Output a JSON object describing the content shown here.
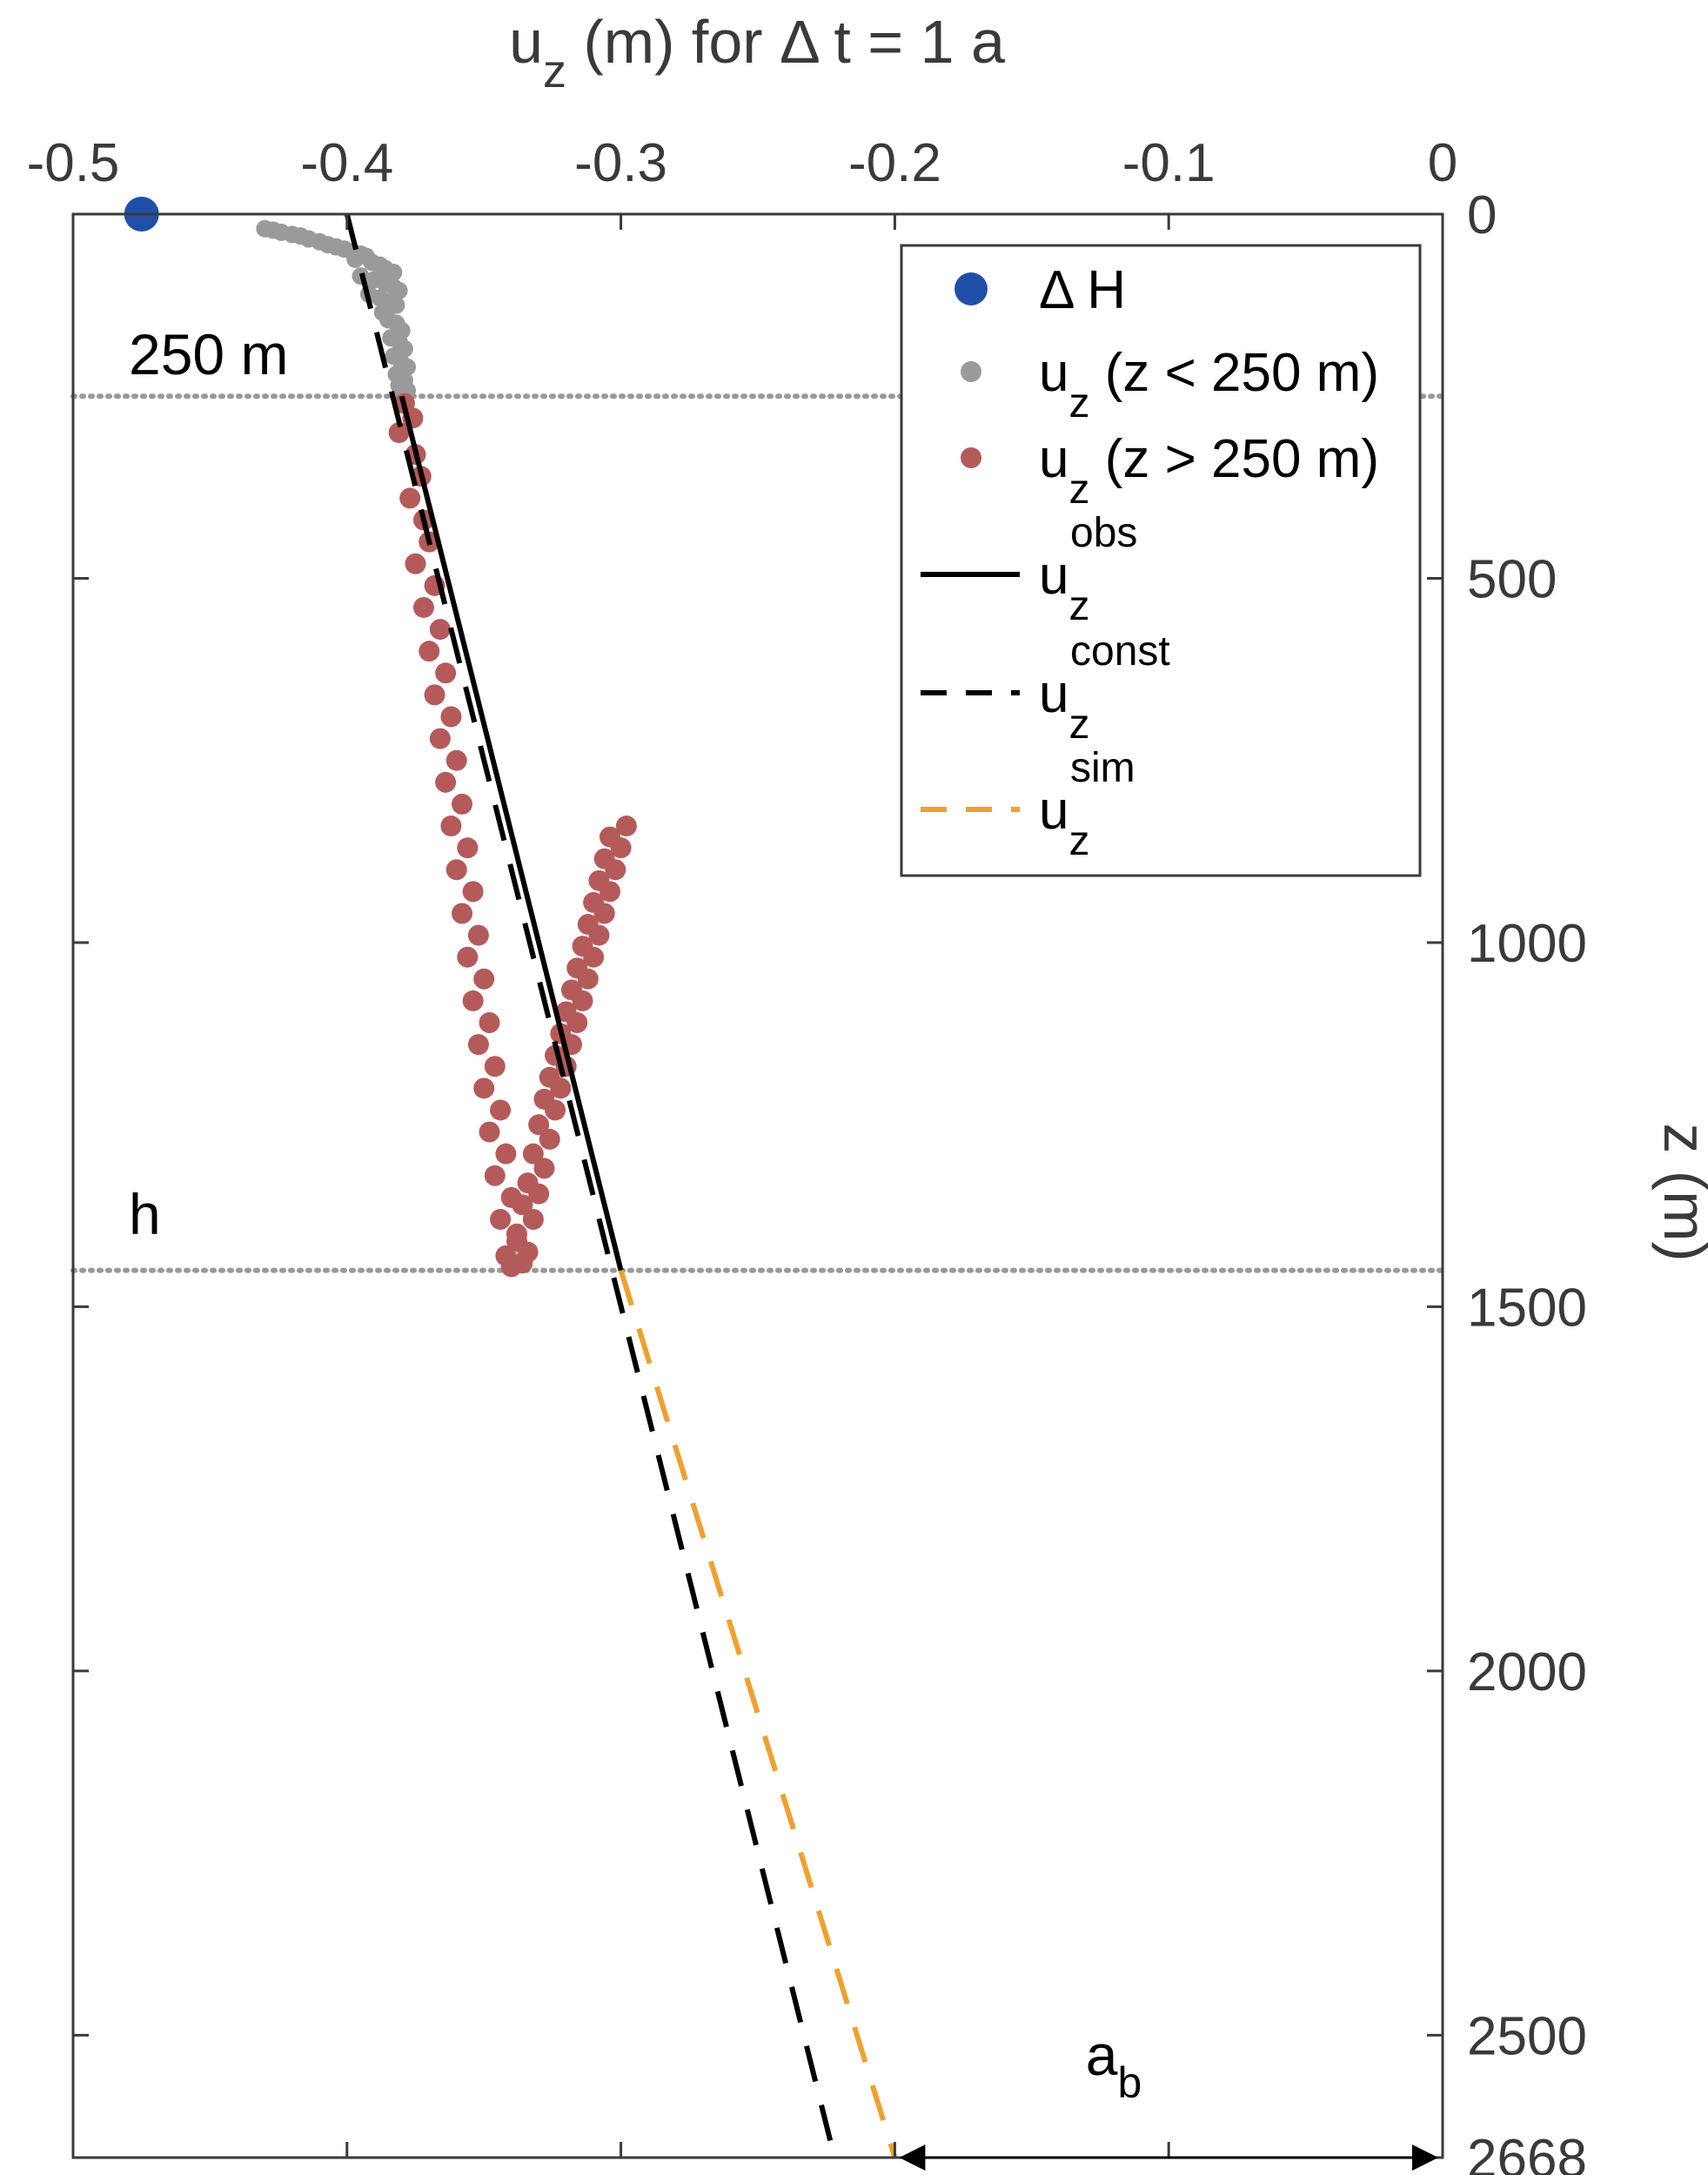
{
  "chart_data": {
    "type": "scatter",
    "title": "",
    "xlabel": {
      "main": "u",
      "sub": "z",
      "rest": " (m) for Δ t = 1 a"
    },
    "ylabel": "z (m)",
    "xlim": [
      -0.5,
      0
    ],
    "ylim": [
      0,
      2668
    ],
    "y_reversed": true,
    "x_axis_position": "top",
    "y_axis_position": "right",
    "xticks": [
      -0.5,
      -0.4,
      -0.3,
      -0.2,
      -0.1,
      0
    ],
    "xtick_labels": [
      "-0.5",
      "-0.4",
      "-0.3",
      "-0.2",
      "-0.1",
      "0"
    ],
    "yticks": [
      0,
      500,
      1000,
      1500,
      2000,
      2500,
      2668
    ],
    "ytick_labels": [
      "0",
      "500",
      "1000",
      "1500",
      "2000",
      "2500",
      "2668"
    ],
    "colors": {
      "delta_h": "#1f4fa8",
      "uz_shallow": "#9a9a9a",
      "uz_deep": "#b55a5a",
      "obs": "#000000",
      "const": "#000000",
      "sim": "#f0a030",
      "ref_lines": "#999999",
      "axes": "#3a3a3a"
    },
    "reference_lines": [
      {
        "y": 250,
        "label": "250 m"
      },
      {
        "y": 1450,
        "label": "h"
      }
    ],
    "annotation": {
      "main": "a",
      "sub": "b",
      "x_from": -0.2,
      "x_to": 0,
      "y": 2668
    },
    "legend": {
      "placement": "top-right",
      "entries": [
        {
          "key": "delta_h",
          "main": "Δ H",
          "sub": "",
          "sup": "",
          "rest": ""
        },
        {
          "key": "uz_shallow",
          "main": "u",
          "sub": "z",
          "sup": "",
          "rest": " (z < 250 m)"
        },
        {
          "key": "uz_deep",
          "main": "u",
          "sub": "z",
          "sup": "",
          "rest": " (z > 250 m)"
        },
        {
          "key": "obs",
          "main": "u",
          "sub": "z",
          "sup": "obs",
          "rest": ""
        },
        {
          "key": "const",
          "main": "u",
          "sub": "z",
          "sup": "const",
          "rest": ""
        },
        {
          "key": "sim",
          "main": "u",
          "sub": "z",
          "sup": "sim",
          "rest": ""
        }
      ]
    },
    "series": [
      {
        "key": "delta_h",
        "kind": "marker",
        "x": [
          -0.475
        ],
        "y": [
          0
        ]
      },
      {
        "key": "uz_shallow",
        "kind": "points",
        "x": [
          -0.43,
          -0.427,
          -0.424,
          -0.42,
          -0.417,
          -0.414,
          -0.41,
          -0.407,
          -0.404,
          -0.401,
          -0.398,
          -0.395,
          -0.393,
          -0.397,
          -0.391,
          -0.388,
          -0.386,
          -0.383,
          -0.395,
          -0.39,
          -0.386,
          -0.383,
          -0.381,
          -0.392,
          -0.388,
          -0.384,
          -0.382,
          -0.387,
          -0.385,
          -0.382,
          -0.38,
          -0.384,
          -0.381,
          -0.379,
          -0.383,
          -0.38,
          -0.378,
          -0.382,
          -0.379,
          -0.381,
          -0.378,
          -0.38
        ],
        "y": [
          20,
          22,
          25,
          28,
          30,
          34,
          38,
          42,
          45,
          48,
          52,
          55,
          58,
          62,
          66,
          70,
          75,
          80,
          85,
          90,
          95,
          100,
          105,
          110,
          115,
          120,
          125,
          135,
          145,
          150,
          160,
          170,
          175,
          185,
          195,
          205,
          210,
          220,
          228,
          235,
          242,
          248
        ]
      },
      {
        "key": "uz_deep",
        "kind": "points",
        "x": [
          -0.379,
          -0.376,
          -0.381,
          -0.375,
          -0.373,
          -0.377,
          -0.372,
          -0.37,
          -0.375,
          -0.368,
          -0.372,
          -0.366,
          -0.37,
          -0.364,
          -0.368,
          -0.362,
          -0.366,
          -0.36,
          -0.364,
          -0.358,
          -0.362,
          -0.356,
          -0.36,
          -0.354,
          -0.358,
          -0.352,
          -0.356,
          -0.35,
          -0.354,
          -0.348,
          -0.352,
          -0.346,
          -0.35,
          -0.344,
          -0.348,
          -0.342,
          -0.346,
          -0.34,
          -0.344,
          -0.338,
          -0.342,
          -0.336,
          -0.34,
          -0.334,
          -0.338,
          -0.332,
          -0.336,
          -0.33,
          -0.334,
          -0.328,
          -0.332,
          -0.326,
          -0.33,
          -0.324,
          -0.328,
          -0.322,
          -0.326,
          -0.32,
          -0.324,
          -0.318,
          -0.322,
          -0.316,
          -0.32,
          -0.314,
          -0.318,
          -0.312,
          -0.316,
          -0.31,
          -0.314,
          -0.308,
          -0.312,
          -0.306,
          -0.31,
          -0.304,
          -0.308,
          -0.302,
          -0.306,
          -0.3,
          -0.304,
          -0.298
        ],
        "y": [
          260,
          280,
          300,
          330,
          360,
          390,
          420,
          450,
          480,
          510,
          540,
          570,
          600,
          630,
          660,
          690,
          720,
          750,
          780,
          810,
          840,
          870,
          900,
          930,
          960,
          990,
          1020,
          1050,
          1080,
          1110,
          1140,
          1170,
          1200,
          1230,
          1260,
          1290,
          1320,
          1350,
          1380,
          1410,
          1430,
          1440,
          1445,
          1425,
          1400,
          1380,
          1360,
          1345,
          1330,
          1310,
          1290,
          1270,
          1250,
          1230,
          1215,
          1200,
          1185,
          1170,
          1155,
          1140,
          1125,
          1110,
          1095,
          1080,
          1065,
          1050,
          1035,
          1020,
          1005,
          990,
          975,
          960,
          945,
          930,
          915,
          900,
          885,
          870,
          855,
          840
        ]
      },
      {
        "key": "obs",
        "kind": "line",
        "x": [
          -0.38,
          -0.3
        ],
        "y": [
          250,
          1450
        ]
      },
      {
        "key": "const",
        "kind": "dashed",
        "x": [
          -0.4,
          -0.222
        ],
        "y": [
          0,
          2668
        ]
      },
      {
        "key": "sim",
        "kind": "dashed",
        "x": [
          -0.3,
          -0.2
        ],
        "y": [
          1450,
          2668
        ]
      }
    ]
  }
}
